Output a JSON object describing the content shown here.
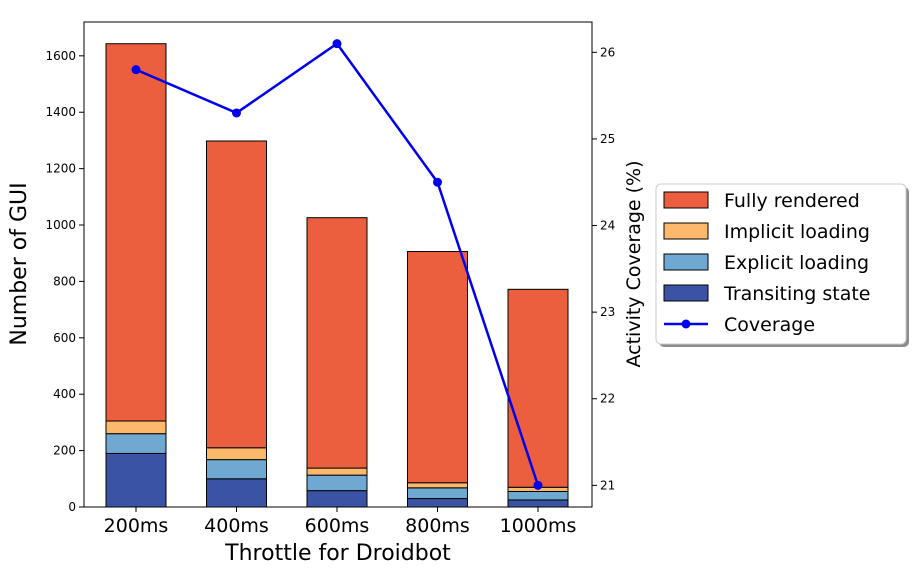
{
  "chart_data": {
    "type": "bar",
    "stacked": true,
    "categories": [
      "200ms",
      "400ms",
      "600ms",
      "800ms",
      "1000ms"
    ],
    "series": [
      {
        "name": "Transiting state",
        "color": "#3a53a4",
        "values": [
          190,
          100,
          58,
          30,
          25
        ]
      },
      {
        "name": "Explicit loading",
        "color": "#6fa8d1",
        "values": [
          70,
          68,
          55,
          38,
          30
        ]
      },
      {
        "name": "Implicit loading",
        "color": "#fdb96b",
        "values": [
          45,
          42,
          25,
          18,
          15
        ]
      },
      {
        "name": "Fully rendered",
        "color": "#ec5f3e",
        "values": [
          1338,
          1088,
          888,
          820,
          702
        ]
      }
    ],
    "line_series": {
      "name": "Coverage",
      "color": "#0000ee",
      "axis": "right",
      "values": [
        25.8,
        25.3,
        26.1,
        24.5,
        21.0
      ]
    },
    "xlabel": "Throttle for Droidbot",
    "ylabel": "Number of GUI",
    "ylabel_right": "Activity Coverage (%)",
    "ylim": [
      0,
      1720
    ],
    "yticks": [
      0,
      200,
      400,
      600,
      800,
      1000,
      1200,
      1400,
      1600
    ],
    "ylim_right": [
      20.75,
      26.35
    ],
    "yticks_right": [
      21,
      22,
      23,
      24,
      25,
      26
    ],
    "legend_position": "center-right",
    "legend_order": [
      "Fully rendered",
      "Implicit loading",
      "Explicit loading",
      "Transiting state",
      "Coverage"
    ]
  }
}
